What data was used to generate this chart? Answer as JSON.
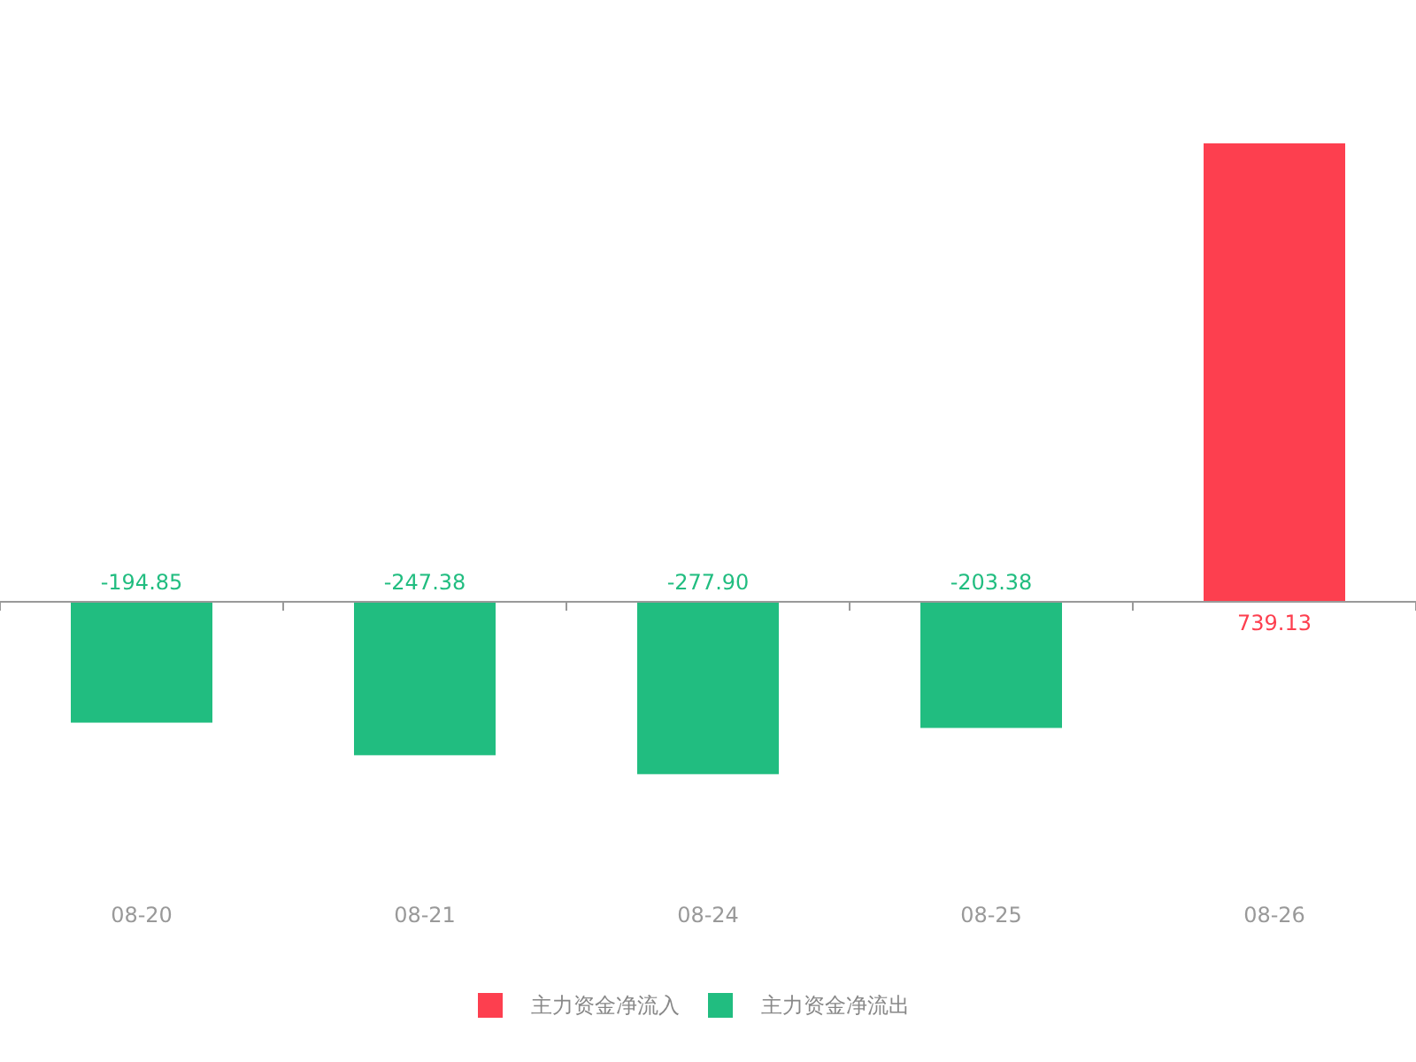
{
  "chart_data": {
    "type": "bar",
    "categories": [
      "08-20",
      "08-21",
      "08-24",
      "08-25",
      "08-26"
    ],
    "series": [
      {
        "name": "主力资金净流入",
        "color": "#fd3f4f",
        "values": [
          null,
          null,
          null,
          null,
          739.13
        ],
        "value_labels": [
          null,
          null,
          null,
          null,
          "739.13"
        ]
      },
      {
        "name": "主力资金净流出",
        "color": "#21bd80",
        "values": [
          -194.85,
          -247.38,
          -277.9,
          -203.38,
          null
        ],
        "value_labels": [
          "-194.85",
          "-247.38",
          "-277.90",
          "-203.38",
          null
        ]
      }
    ],
    "legend": "bottom"
  }
}
